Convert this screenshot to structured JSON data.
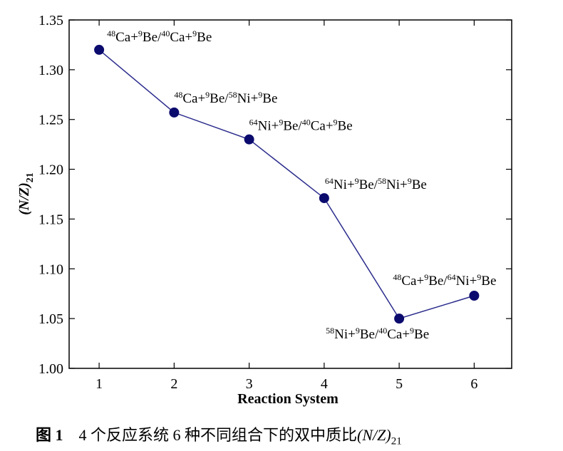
{
  "chart_data": {
    "type": "line",
    "xlabel": "Reaction System",
    "ylabel_main": "(N/Z)",
    "ylabel_sub": "21",
    "ylim": [
      1.0,
      1.35
    ],
    "xlim": [
      0.6,
      6.5
    ],
    "yticks": [
      "1.00",
      "1.05",
      "1.10",
      "1.15",
      "1.20",
      "1.25",
      "1.30",
      "1.35"
    ],
    "xticks": [
      "1",
      "2",
      "3",
      "4",
      "5",
      "6"
    ],
    "grid": false,
    "line_color": "#2b2c8c",
    "marker_color": "#0b0b6e",
    "x": [
      1,
      2,
      3,
      4,
      5,
      6
    ],
    "y": [
      1.32,
      1.257,
      1.23,
      1.171,
      1.05,
      1.073
    ],
    "point_labels": [
      [
        {
          "t": "48",
          "s": 1
        },
        {
          "t": "Ca+",
          "s": 0
        },
        {
          "t": "9",
          "s": 1
        },
        {
          "t": "Be/",
          "s": 0
        },
        {
          "t": "40",
          "s": 1
        },
        {
          "t": "Ca+",
          "s": 0
        },
        {
          "t": "9",
          "s": 1
        },
        {
          "t": "Be",
          "s": 0
        }
      ],
      [
        {
          "t": "48",
          "s": 1
        },
        {
          "t": "Ca+",
          "s": 0
        },
        {
          "t": "9",
          "s": 1
        },
        {
          "t": "Be/",
          "s": 0
        },
        {
          "t": "58",
          "s": 1
        },
        {
          "t": "Ni+",
          "s": 0
        },
        {
          "t": "9",
          "s": 1
        },
        {
          "t": "Be",
          "s": 0
        }
      ],
      [
        {
          "t": "64",
          "s": 1
        },
        {
          "t": "Ni+",
          "s": 0
        },
        {
          "t": "9",
          "s": 1
        },
        {
          "t": "Be/",
          "s": 0
        },
        {
          "t": "40",
          "s": 1
        },
        {
          "t": "Ca+",
          "s": 0
        },
        {
          "t": "9",
          "s": 1
        },
        {
          "t": "Be",
          "s": 0
        }
      ],
      [
        {
          "t": "64",
          "s": 1
        },
        {
          "t": "Ni+",
          "s": 0
        },
        {
          "t": "9",
          "s": 1
        },
        {
          "t": "Be/",
          "s": 0
        },
        {
          "t": "58",
          "s": 1
        },
        {
          "t": "Ni+",
          "s": 0
        },
        {
          "t": "9",
          "s": 1
        },
        {
          "t": "Be",
          "s": 0
        }
      ],
      [
        {
          "t": "58",
          "s": 1
        },
        {
          "t": "Ni+",
          "s": 0
        },
        {
          "t": "9",
          "s": 1
        },
        {
          "t": "Be/",
          "s": 0
        },
        {
          "t": "40",
          "s": 1
        },
        {
          "t": "Ca+",
          "s": 0
        },
        {
          "t": "9",
          "s": 1
        },
        {
          "t": "Be",
          "s": 0
        }
      ],
      [
        {
          "t": "48",
          "s": 1
        },
        {
          "t": "Ca+",
          "s": 0
        },
        {
          "t": "9",
          "s": 1
        },
        {
          "t": "Be/",
          "s": 0
        },
        {
          "t": "64",
          "s": 1
        },
        {
          "t": "Ni+",
          "s": 0
        },
        {
          "t": "9",
          "s": 1
        },
        {
          "t": "Be",
          "s": 0
        }
      ]
    ]
  },
  "caption": {
    "figure_number": "图 1",
    "text": "4 个反应系统 6 种不同组合下的双中质比",
    "symbol": "(N/Z)",
    "subscript": "21"
  }
}
